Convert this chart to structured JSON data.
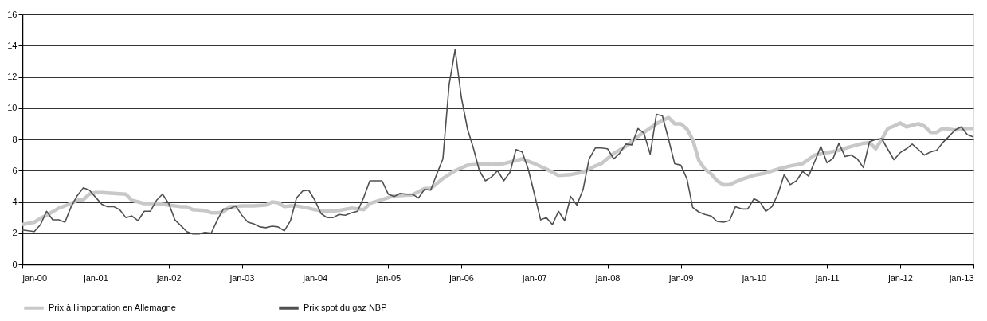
{
  "chart_data": {
    "type": "line",
    "xlim": [
      "2000-01",
      "2013-01"
    ],
    "ylim": [
      0,
      16
    ],
    "yticks": [
      0,
      2,
      4,
      6,
      8,
      10,
      12,
      14,
      16
    ],
    "xticks": [
      {
        "value": "2000-01",
        "label": "jan-00"
      },
      {
        "value": "2001-01",
        "label": "jan-01"
      },
      {
        "value": "2002-01",
        "label": "jan-02"
      },
      {
        "value": "2003-01",
        "label": "jan-03"
      },
      {
        "value": "2004-01",
        "label": "jan-04"
      },
      {
        "value": "2005-01",
        "label": "jan-05"
      },
      {
        "value": "2006-01",
        "label": "jan-06"
      },
      {
        "value": "2007-01",
        "label": "jan-07"
      },
      {
        "value": "2008-01",
        "label": "jan-08"
      },
      {
        "value": "2009-01",
        "label": "jan-09"
      },
      {
        "value": "2010-01",
        "label": "jan-10"
      },
      {
        "value": "2011-01",
        "label": "jan-11"
      },
      {
        "value": "2012-01",
        "label": "jan-12"
      },
      {
        "value": "2013-01",
        "label": "jan-13"
      }
    ],
    "grid": "y",
    "legend": "bottom",
    "marker": "none",
    "line_style": "solid",
    "series": [
      {
        "name": "Prix à l'importation en Allemagne",
        "color": "#c8c8c8",
        "x": [
          "2000-01",
          "2000-03",
          "2000-04",
          "2000-05",
          "2000-07",
          "2000-09",
          "2000-10",
          "2000-11",
          "2000-12",
          "2001-01",
          "2001-02",
          "2001-04",
          "2001-06",
          "2001-07",
          "2001-09",
          "2001-11",
          "2002-01",
          "2002-03",
          "2002-04",
          "2002-05",
          "2002-07",
          "2002-08",
          "2002-09",
          "2002-10",
          "2002-11",
          "2002-12",
          "2003-01",
          "2003-03",
          "2003-05",
          "2003-06",
          "2003-07",
          "2003-08",
          "2003-09",
          "2003-10",
          "2003-12",
          "2004-01",
          "2004-03",
          "2004-05",
          "2004-07",
          "2004-09",
          "2004-10",
          "2004-12",
          "2005-02",
          "2005-05",
          "2005-07",
          "2005-08",
          "2005-10",
          "2005-12",
          "2006-02",
          "2006-05",
          "2006-06",
          "2006-08",
          "2006-10",
          "2006-11",
          "2007-01",
          "2007-03",
          "2007-05",
          "2007-07",
          "2007-09",
          "2007-11",
          "2007-12",
          "2008-02",
          "2008-04",
          "2008-06",
          "2008-07",
          "2008-09",
          "2008-11",
          "2008-12",
          "2009-01",
          "2009-02",
          "2009-03",
          "2009-04",
          "2009-05",
          "2009-06",
          "2009-07",
          "2009-08",
          "2009-09",
          "2009-11",
          "2010-01",
          "2010-03",
          "2010-05",
          "2010-07",
          "2010-09",
          "2010-11",
          "2011-01",
          "2011-03",
          "2011-05",
          "2011-07",
          "2011-08",
          "2011-09",
          "2011-10",
          "2011-11",
          "2011-12",
          "2012-01",
          "2012-02",
          "2012-04",
          "2012-05",
          "2012-06",
          "2012-07",
          "2012-08",
          "2012-10",
          "2012-12",
          "2013-01"
        ],
        "values": [
          2.55,
          2.7,
          2.95,
          3.15,
          3.6,
          3.9,
          4.1,
          4.15,
          4.5,
          4.6,
          4.6,
          4.55,
          4.5,
          4.1,
          3.9,
          3.9,
          3.8,
          3.7,
          3.7,
          3.5,
          3.45,
          3.3,
          3.3,
          3.35,
          3.7,
          3.7,
          3.75,
          3.75,
          3.8,
          4.0,
          3.95,
          3.7,
          3.75,
          3.75,
          3.6,
          3.5,
          3.4,
          3.45,
          3.6,
          3.5,
          3.9,
          4.15,
          4.4,
          4.45,
          4.85,
          4.85,
          5.5,
          6.0,
          6.35,
          6.45,
          6.4,
          6.45,
          6.65,
          6.75,
          6.45,
          6.1,
          5.7,
          5.75,
          5.9,
          6.3,
          6.45,
          7.1,
          7.55,
          8.2,
          8.45,
          9.0,
          9.4,
          9.0,
          9.0,
          8.65,
          8.0,
          6.65,
          6.1,
          5.8,
          5.35,
          5.1,
          5.1,
          5.45,
          5.7,
          5.85,
          6.1,
          6.3,
          6.45,
          7.0,
          7.15,
          7.3,
          7.55,
          7.75,
          7.8,
          7.4,
          8.0,
          8.7,
          8.85,
          9.05,
          8.8,
          9.0,
          8.85,
          8.45,
          8.45,
          8.7,
          8.6,
          8.7,
          8.7
        ]
      },
      {
        "name": "Prix spot du gaz NBP",
        "color": "#505050",
        "x": [
          "2000-01",
          "2000-02",
          "2000-03",
          "2000-04",
          "2000-05",
          "2000-06",
          "2000-07",
          "2000-08",
          "2000-09",
          "2000-10",
          "2000-11",
          "2000-12",
          "2001-01",
          "2001-02",
          "2001-03",
          "2001-04",
          "2001-05",
          "2001-06",
          "2001-07",
          "2001-08",
          "2001-09",
          "2001-10",
          "2001-11",
          "2001-12",
          "2002-01",
          "2002-02",
          "2002-03",
          "2002-04",
          "2002-05",
          "2002-06",
          "2002-07",
          "2002-08",
          "2002-09",
          "2002-10",
          "2002-11",
          "2002-12",
          "2003-01",
          "2003-02",
          "2003-03",
          "2003-04",
          "2003-05",
          "2003-06",
          "2003-07",
          "2003-08",
          "2003-09",
          "2003-10",
          "2003-11",
          "2003-12",
          "2004-01",
          "2004-02",
          "2004-03",
          "2004-04",
          "2004-05",
          "2004-06",
          "2004-07",
          "2004-08",
          "2004-09",
          "2004-10",
          "2004-11",
          "2004-12",
          "2005-01",
          "2005-02",
          "2005-03",
          "2005-04",
          "2005-05",
          "2005-06",
          "2005-07",
          "2005-08",
          "2005-09",
          "2005-10",
          "2005-11",
          "2005-12",
          "2006-01",
          "2006-02",
          "2006-03",
          "2006-04",
          "2006-05",
          "2006-06",
          "2006-07",
          "2006-08",
          "2006-09",
          "2006-10",
          "2006-11",
          "2006-12",
          "2007-01",
          "2007-02",
          "2007-03",
          "2007-04",
          "2007-05",
          "2007-06",
          "2007-07",
          "2007-08",
          "2007-09",
          "2007-10",
          "2007-11",
          "2007-12",
          "2008-01",
          "2008-02",
          "2008-03",
          "2008-04",
          "2008-05",
          "2008-06",
          "2008-07",
          "2008-08",
          "2008-09",
          "2008-10",
          "2008-11",
          "2008-12",
          "2009-01",
          "2009-02",
          "2009-03",
          "2009-04",
          "2009-05",
          "2009-06",
          "2009-07",
          "2009-08",
          "2009-09",
          "2009-10",
          "2009-11",
          "2009-12",
          "2010-01",
          "2010-02",
          "2010-03",
          "2010-04",
          "2010-05",
          "2010-06",
          "2010-07",
          "2010-08",
          "2010-09",
          "2010-10",
          "2010-11",
          "2010-12",
          "2011-01",
          "2011-02",
          "2011-03",
          "2011-04",
          "2011-05",
          "2011-06",
          "2011-07",
          "2011-08",
          "2011-09",
          "2011-10",
          "2011-11",
          "2011-12",
          "2012-01",
          "2012-02",
          "2012-03",
          "2012-04",
          "2012-05",
          "2012-06",
          "2012-07",
          "2012-08",
          "2012-09",
          "2012-10",
          "2012-11",
          "2012-12",
          "2013-01"
        ],
        "values": [
          2.2,
          2.15,
          2.1,
          2.55,
          3.4,
          2.85,
          2.85,
          2.7,
          3.7,
          4.4,
          4.9,
          4.75,
          4.3,
          3.85,
          3.7,
          3.7,
          3.5,
          3.0,
          3.1,
          2.8,
          3.4,
          3.4,
          4.1,
          4.5,
          3.9,
          2.85,
          2.5,
          2.1,
          1.95,
          1.95,
          2.05,
          2.0,
          2.85,
          3.55,
          3.55,
          3.75,
          3.15,
          2.7,
          2.6,
          2.4,
          2.35,
          2.45,
          2.4,
          2.15,
          2.8,
          4.25,
          4.7,
          4.75,
          4.1,
          3.25,
          3.0,
          3.0,
          3.2,
          3.15,
          3.3,
          3.4,
          4.3,
          5.35,
          5.35,
          5.35,
          4.5,
          4.35,
          4.55,
          4.5,
          4.5,
          4.25,
          4.8,
          4.75,
          5.8,
          6.75,
          11.5,
          13.75,
          10.7,
          8.65,
          7.5,
          6.0,
          5.35,
          5.6,
          6.0,
          5.35,
          5.9,
          7.35,
          7.2,
          6.1,
          4.5,
          2.85,
          3.0,
          2.55,
          3.4,
          2.8,
          4.35,
          3.8,
          4.8,
          6.75,
          7.45,
          7.45,
          7.4,
          6.75,
          7.1,
          7.7,
          7.65,
          8.7,
          8.4,
          7.05,
          9.6,
          9.5,
          8.0,
          6.45,
          6.35,
          5.45,
          3.65,
          3.35,
          3.2,
          3.1,
          2.75,
          2.7,
          2.8,
          3.7,
          3.55,
          3.55,
          4.2,
          4.0,
          3.4,
          3.7,
          4.5,
          5.75,
          5.1,
          5.35,
          5.95,
          5.65,
          6.6,
          7.55,
          6.5,
          6.8,
          7.75,
          6.9,
          7.0,
          6.75,
          6.2,
          7.85,
          8.0,
          8.05,
          7.35,
          6.7,
          7.15,
          7.4,
          7.7,
          7.35,
          7.0,
          7.2,
          7.3,
          7.8,
          8.2,
          8.6,
          8.8,
          8.3,
          8.15
        ]
      }
    ]
  }
}
